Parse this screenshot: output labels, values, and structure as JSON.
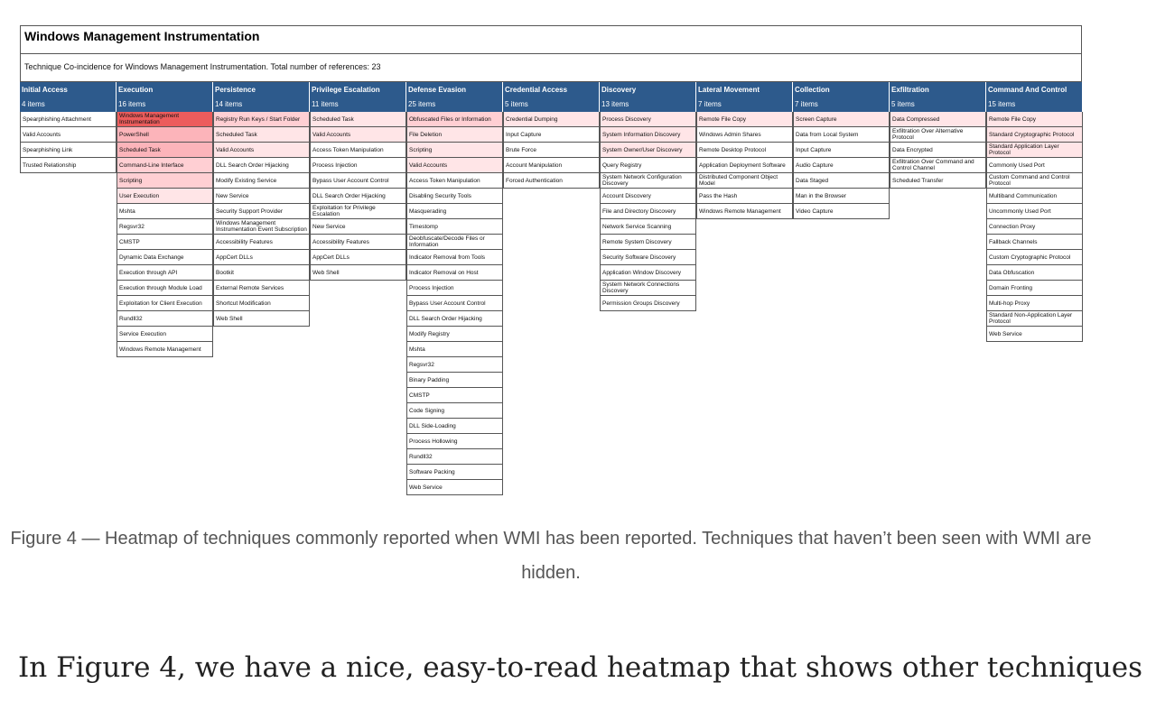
{
  "figure": {
    "title": "Windows Management Instrumentation",
    "subtitle": "Technique Co-incidence for Windows Management Instrumentation. Total number of references: 23",
    "columns": [
      {
        "name": "Initial Access",
        "count": "4 items",
        "items": [
          {
            "label": "Spearphishing Attachment",
            "level": 0
          },
          {
            "label": "Valid Accounts",
            "level": 0
          },
          {
            "label": "Spearphishing Link",
            "level": 0
          },
          {
            "label": "Trusted Relationship",
            "level": 0
          }
        ]
      },
      {
        "name": "Execution",
        "count": "16 items",
        "items": [
          {
            "label": "Windows Management Instrumentation",
            "level": 5
          },
          {
            "label": "PowerShell",
            "level": 3
          },
          {
            "label": "Scheduled Task",
            "level": 3
          },
          {
            "label": "Command-Line Interface",
            "level": 2
          },
          {
            "label": "Scripting",
            "level": 2
          },
          {
            "label": "User Execution",
            "level": 1
          },
          {
            "label": "Mshta",
            "level": 0
          },
          {
            "label": "Regsvr32",
            "level": 0
          },
          {
            "label": "CMSTP",
            "level": 0
          },
          {
            "label": "Dynamic Data Exchange",
            "level": 0
          },
          {
            "label": "Execution through API",
            "level": 0
          },
          {
            "label": "Execution through Module Load",
            "level": 0
          },
          {
            "label": "Exploitation for Client Execution",
            "level": 0
          },
          {
            "label": "Rundll32",
            "level": 0
          },
          {
            "label": "Service Execution",
            "level": 0
          },
          {
            "label": "Windows Remote Management",
            "level": 0
          }
        ]
      },
      {
        "name": "Persistence",
        "count": "14 items",
        "items": [
          {
            "label": "Registry Run Keys / Start Folder",
            "level": 2
          },
          {
            "label": "Scheduled Task",
            "level": 1
          },
          {
            "label": "Valid Accounts",
            "level": 1
          },
          {
            "label": "DLL Search Order Hijacking",
            "level": 0
          },
          {
            "label": "Modify Existing Service",
            "level": 0
          },
          {
            "label": "New Service",
            "level": 0
          },
          {
            "label": "Security Support Provider",
            "level": 0
          },
          {
            "label": "Windows Management Instrumentation Event Subscription",
            "level": 0
          },
          {
            "label": "Accessibility Features",
            "level": 0
          },
          {
            "label": "AppCert DLLs",
            "level": 0
          },
          {
            "label": "Bootkit",
            "level": 0
          },
          {
            "label": "External Remote Services",
            "level": 0
          },
          {
            "label": "Shortcut Modification",
            "level": 0
          },
          {
            "label": "Web Shell",
            "level": 0
          }
        ]
      },
      {
        "name": "Privilege Escalation",
        "count": "11 items",
        "items": [
          {
            "label": "Scheduled Task",
            "level": 1
          },
          {
            "label": "Valid Accounts",
            "level": 1
          },
          {
            "label": "Access Token Manipulation",
            "level": 0
          },
          {
            "label": "Process Injection",
            "level": 0
          },
          {
            "label": "Bypass User Account Control",
            "level": 0
          },
          {
            "label": "DLL Search Order Hijacking",
            "level": 0
          },
          {
            "label": "Exploitation for Privilege Escalation",
            "level": 0
          },
          {
            "label": "New Service",
            "level": 0
          },
          {
            "label": "Accessibility Features",
            "level": 0
          },
          {
            "label": "AppCert DLLs",
            "level": 0
          },
          {
            "label": "Web Shell",
            "level": 0
          }
        ]
      },
      {
        "name": "Defense Evasion",
        "count": "25 items",
        "items": [
          {
            "label": "Obfuscated Files or Information",
            "level": 2
          },
          {
            "label": "File Deletion",
            "level": 1
          },
          {
            "label": "Scripting",
            "level": 1
          },
          {
            "label": "Valid Accounts",
            "level": 1
          },
          {
            "label": "Access Token Manipulation",
            "level": 0
          },
          {
            "label": "Disabling Security Tools",
            "level": 0
          },
          {
            "label": "Masquerading",
            "level": 0
          },
          {
            "label": "Timestomp",
            "level": 0
          },
          {
            "label": "Deobfuscate/Decode Files or Information",
            "level": 0
          },
          {
            "label": "Indicator Removal from Tools",
            "level": 0
          },
          {
            "label": "Indicator Removal on Host",
            "level": 0
          },
          {
            "label": "Process Injection",
            "level": 0
          },
          {
            "label": "Bypass User Account Control",
            "level": 0
          },
          {
            "label": "DLL Search Order Hijacking",
            "level": 0
          },
          {
            "label": "Modify Registry",
            "level": 0
          },
          {
            "label": "Mshta",
            "level": 0
          },
          {
            "label": "Regsvr32",
            "level": 0
          },
          {
            "label": "Binary Padding",
            "level": 0
          },
          {
            "label": "CMSTP",
            "level": 0
          },
          {
            "label": "Code Signing",
            "level": 0
          },
          {
            "label": "DLL Side-Loading",
            "level": 0
          },
          {
            "label": "Process Hollowing",
            "level": 0
          },
          {
            "label": "Rundll32",
            "level": 0
          },
          {
            "label": "Software Packing",
            "level": 0
          },
          {
            "label": "Web Service",
            "level": 0
          }
        ]
      },
      {
        "name": "Credential Access",
        "count": "5 items",
        "items": [
          {
            "label": "Credential Dumping",
            "level": 1
          },
          {
            "label": "Input Capture",
            "level": 0
          },
          {
            "label": "Brute Force",
            "level": 0
          },
          {
            "label": "Account Manipulation",
            "level": 0
          },
          {
            "label": "Forced Authentication",
            "level": 0
          }
        ]
      },
      {
        "name": "Discovery",
        "count": "13 items",
        "items": [
          {
            "label": "Process Discovery",
            "level": 1
          },
          {
            "label": "System Information Discovery",
            "level": 1
          },
          {
            "label": "System Owner/User Discovery",
            "level": 1
          },
          {
            "label": "Query Registry",
            "level": 0
          },
          {
            "label": "System Network Configuration Discovery",
            "level": 0
          },
          {
            "label": "Account Discovery",
            "level": 0
          },
          {
            "label": "File and Directory Discovery",
            "level": 0
          },
          {
            "label": "Network Service Scanning",
            "level": 0
          },
          {
            "label": "Remote System Discovery",
            "level": 0
          },
          {
            "label": "Security Software Discovery",
            "level": 0
          },
          {
            "label": "Application Window Discovery",
            "level": 0
          },
          {
            "label": "System Network Connections Discovery",
            "level": 0
          },
          {
            "label": "Permission Groups Discovery",
            "level": 0
          }
        ]
      },
      {
        "name": "Lateral Movement",
        "count": "7 items",
        "items": [
          {
            "label": "Remote File Copy",
            "level": 1
          },
          {
            "label": "Windows Admin Shares",
            "level": 0
          },
          {
            "label": "Remote Desktop Protocol",
            "level": 0
          },
          {
            "label": "Application Deployment Software",
            "level": 0
          },
          {
            "label": "Distributed Component Object Model",
            "level": 0
          },
          {
            "label": "Pass the Hash",
            "level": 0
          },
          {
            "label": "Windows Remote Management",
            "level": 0
          }
        ]
      },
      {
        "name": "Collection",
        "count": "7 items",
        "items": [
          {
            "label": "Screen Capture",
            "level": 1
          },
          {
            "label": "Data from Local System",
            "level": 0
          },
          {
            "label": "Input Capture",
            "level": 0
          },
          {
            "label": "Audio Capture",
            "level": 0
          },
          {
            "label": "Data Staged",
            "level": 0
          },
          {
            "label": "Man in the Browser",
            "level": 0
          },
          {
            "label": "Video Capture",
            "level": 0
          }
        ]
      },
      {
        "name": "Exfiltration",
        "count": "5 items",
        "items": [
          {
            "label": "Data Compressed",
            "level": 1
          },
          {
            "label": "Exfiltration Over Alternative Protocol",
            "level": 0
          },
          {
            "label": "Data Encrypted",
            "level": 0
          },
          {
            "label": "Exfiltration Over Command and Control Channel",
            "level": 0
          },
          {
            "label": "Scheduled Transfer",
            "level": 0
          }
        ]
      },
      {
        "name": "Command And Control",
        "count": "15 items",
        "items": [
          {
            "label": "Remote File Copy",
            "level": 1
          },
          {
            "label": "Standard Cryptographic Protocol",
            "level": 1
          },
          {
            "label": "Standard Application Layer Protocol",
            "level": 1
          },
          {
            "label": "Commonly Used Port",
            "level": 0
          },
          {
            "label": "Custom Command and Control Protocol",
            "level": 0
          },
          {
            "label": "Multiband Communication",
            "level": 0
          },
          {
            "label": "Uncommonly Used Port",
            "level": 0
          },
          {
            "label": "Connection Proxy",
            "level": 0
          },
          {
            "label": "Fallback Channels",
            "level": 0
          },
          {
            "label": "Custom Cryptographic Protocol",
            "level": 0
          },
          {
            "label": "Data Obfuscation",
            "level": 0
          },
          {
            "label": "Domain Fronting",
            "level": 0
          },
          {
            "label": "Multi-hop Proxy",
            "level": 0
          },
          {
            "label": "Standard Non-Application Layer Protocol",
            "level": 0
          },
          {
            "label": "Web Service",
            "level": 0
          }
        ]
      }
    ]
  },
  "heat_colors": [
    "#ffffff",
    "#ffe5e7",
    "#ffcfd3",
    "#fcb4ba",
    "#f59aa0",
    "#ec5c5c"
  ],
  "header_color": "#2d5a8c",
  "caption": "Figure 4 — Heatmap of techniques commonly reported when WMI has been reported. Techniques that haven’t been seen with WMI are hidden.",
  "body_text": "In Figure 4, we have a nice, easy-to-read heatmap that shows other techniques"
}
